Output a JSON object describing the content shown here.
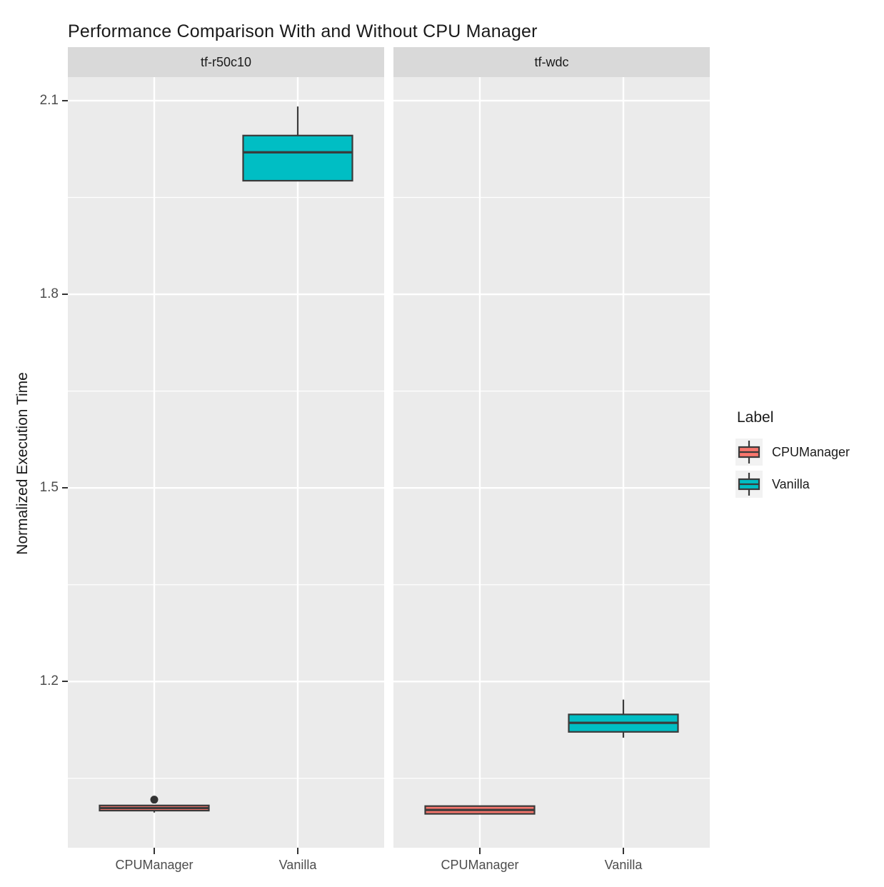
{
  "chart_data": {
    "type": "boxplot",
    "title": "Performance Comparison With and Without CPU Manager",
    "ylabel": "Normalized Execution Time",
    "xlabel": "",
    "categories": [
      "CPUManager",
      "Vanilla"
    ],
    "ylim": [
      0.9425,
      2.1365
    ],
    "yticks": [
      2.1,
      1.8,
      1.5,
      1.2
    ],
    "ytick_labels": [
      "2.1",
      "1.8",
      "1.5",
      "1.2"
    ],
    "minor_yticks": [
      1.95,
      1.65,
      1.35,
      1.05
    ],
    "grid": true,
    "legend": {
      "title": "Label",
      "position": "right"
    },
    "series": [
      {
        "name": "CPUManager",
        "fill": "#F8766D"
      },
      {
        "name": "Vanilla",
        "fill": "#00BEC4"
      }
    ],
    "facets": [
      {
        "label": "tf-r50c10",
        "boxes": [
          {
            "category": "CPUManager",
            "series": "CPUManager",
            "whisker_low": 0.997,
            "q1": 1.0,
            "median": 1.004,
            "q3": 1.008,
            "whisker_high": 1.008,
            "outliers": [
              1.017
            ]
          },
          {
            "category": "Vanilla",
            "series": "Vanilla",
            "whisker_low": 1.976,
            "q1": 1.976,
            "median": 2.02,
            "q3": 2.046,
            "whisker_high": 2.091,
            "outliers": []
          }
        ]
      },
      {
        "label": "tf-wdc",
        "boxes": [
          {
            "category": "CPUManager",
            "series": "CPUManager",
            "whisker_low": 0.995,
            "q1": 0.995,
            "median": 1.001,
            "q3": 1.007,
            "whisker_high": 1.007,
            "outliers": []
          },
          {
            "category": "Vanilla",
            "series": "Vanilla",
            "whisker_low": 1.113,
            "q1": 1.122,
            "median": 1.136,
            "q3": 1.149,
            "whisker_high": 1.172,
            "outliers": []
          }
        ]
      }
    ],
    "colors": {
      "panel_bg": "#EBEBEB",
      "strip_bg": "#D9D9D9",
      "grid": "#FFFFFF",
      "box_stroke": "#3A3A3A",
      "outlier": "#333333",
      "tick_mark": "#333333",
      "tick_label": "#4D4D4D",
      "text": "#1A1A1A",
      "legend_key_bg": "#F2F2F2"
    }
  }
}
